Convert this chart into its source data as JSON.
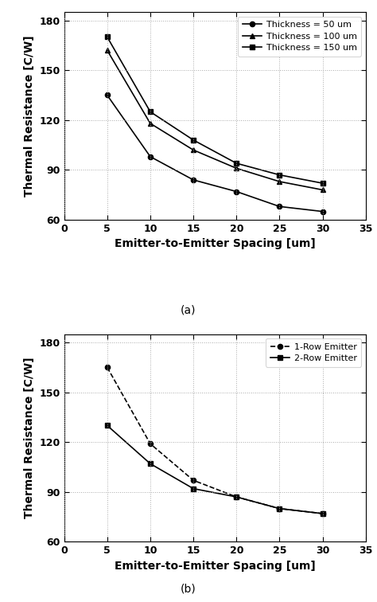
{
  "x": [
    5,
    10,
    15,
    20,
    25,
    30
  ],
  "plot_a": {
    "thickness_50": [
      135,
      98,
      84,
      77,
      68,
      65
    ],
    "thickness_100": [
      162,
      118,
      102,
      91,
      83,
      78
    ],
    "thickness_150": [
      170,
      125,
      108,
      94,
      87,
      82
    ],
    "labels": [
      "Thickness = 50 um",
      "Thickness = 100 um",
      "Thickness = 150 um"
    ],
    "markers": [
      "o",
      "^",
      "s"
    ],
    "linestyles": [
      "-",
      "-",
      "-"
    ]
  },
  "plot_b": {
    "row1": [
      165,
      119,
      97,
      87,
      80,
      77
    ],
    "row2": [
      130,
      107,
      92,
      87,
      80,
      77
    ],
    "labels": [
      "1-Row Emitter",
      "2-Row Emitter"
    ],
    "markers": [
      "o",
      "s"
    ],
    "linestyles": [
      "--",
      "-"
    ]
  },
  "xlabel": "Emitter-to-Emitter Spacing [um]",
  "ylabel": "Thermal Resistance [C/W]",
  "xlim": [
    0,
    35
  ],
  "ylim": [
    60,
    185
  ],
  "yticks": [
    60,
    90,
    120,
    150,
    180
  ],
  "xticks": [
    0,
    5,
    10,
    15,
    20,
    25,
    30,
    35
  ],
  "label_a": "(a)",
  "label_b": "(b)",
  "bg_color": "#ffffff",
  "line_color": "#000000",
  "grid_color": "#aaaaaa",
  "fontsize_ticks": 9,
  "fontsize_label": 10,
  "fontsize_legend": 8,
  "fontsize_sublabel": 10
}
